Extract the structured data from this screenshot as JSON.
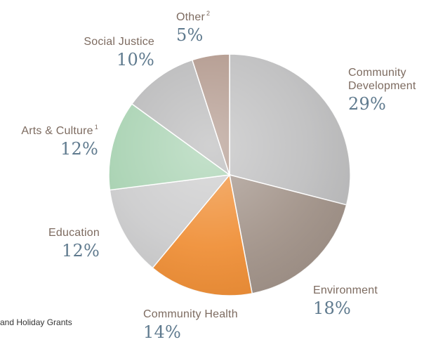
{
  "chart_data": {
    "type": "pie",
    "slices": [
      {
        "label": "Community Development",
        "value": 29,
        "display": "29%",
        "color": "#bdbdbe",
        "label_lines": [
          "Community",
          "Development"
        ]
      },
      {
        "label": "Environment",
        "value": 18,
        "display": "18%",
        "color": "#a19288",
        "label_lines": [
          "Environment"
        ]
      },
      {
        "label": "Community Health",
        "value": 14,
        "display": "14%",
        "color": "#ef8d33",
        "label_lines": [
          "Community Health"
        ]
      },
      {
        "label": "Education",
        "value": 12,
        "display": "12%",
        "color": "#cbcbcc",
        "label_lines": [
          "Education"
        ]
      },
      {
        "label": "Arts & Culture",
        "value": 12,
        "display": "12%",
        "color": "#a6d1b0",
        "label_lines": [
          "Arts & Culture"
        ],
        "footnote_mark": "1"
      },
      {
        "label": "Social Justice",
        "value": 10,
        "display": "10%",
        "color": "#b8b8b9",
        "label_lines": [
          "Social Justice"
        ]
      },
      {
        "label": "Other",
        "value": 5,
        "display": "5%",
        "color": "#b0968a",
        "label_lines": [
          "Other"
        ],
        "footnote_mark": "2"
      }
    ],
    "start_angle_deg": 0,
    "direction": "clockwise",
    "label_text_color": "#7d6b60",
    "value_text_color": "#5f7a8e"
  },
  "footnote_text": "and Holiday Grants"
}
